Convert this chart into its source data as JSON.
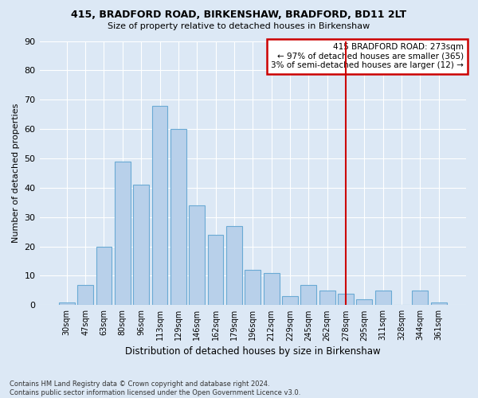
{
  "title1": "415, BRADFORD ROAD, BIRKENSHAW, BRADFORD, BD11 2LT",
  "title2": "Size of property relative to detached houses in Birkenshaw",
  "xlabel": "Distribution of detached houses by size in Birkenshaw",
  "ylabel": "Number of detached properties",
  "categories": [
    "30sqm",
    "47sqm",
    "63sqm",
    "80sqm",
    "96sqm",
    "113sqm",
    "129sqm",
    "146sqm",
    "162sqm",
    "179sqm",
    "196sqm",
    "212sqm",
    "229sqm",
    "245sqm",
    "262sqm",
    "278sqm",
    "295sqm",
    "311sqm",
    "328sqm",
    "344sqm",
    "361sqm"
  ],
  "values": [
    1,
    7,
    20,
    49,
    41,
    68,
    60,
    34,
    24,
    27,
    12,
    11,
    3,
    7,
    5,
    4,
    2,
    5,
    0,
    5,
    1
  ],
  "bar_color": "#b8d0ea",
  "bar_edge_color": "#6aaad4",
  "vline_x": 15.0,
  "vline_color": "#cc0000",
  "annotation_text": "415 BRADFORD ROAD: 273sqm\n← 97% of detached houses are smaller (365)\n3% of semi-detached houses are larger (12) →",
  "annotation_box_color": "#ffffff",
  "annotation_box_edge": "#cc0000",
  "ylim": [
    0,
    90
  ],
  "yticks": [
    0,
    10,
    20,
    30,
    40,
    50,
    60,
    70,
    80,
    90
  ],
  "footnote": "Contains HM Land Registry data © Crown copyright and database right 2024.\nContains public sector information licensed under the Open Government Licence v3.0.",
  "bg_color": "#dce8f5",
  "grid_color": "#ffffff"
}
